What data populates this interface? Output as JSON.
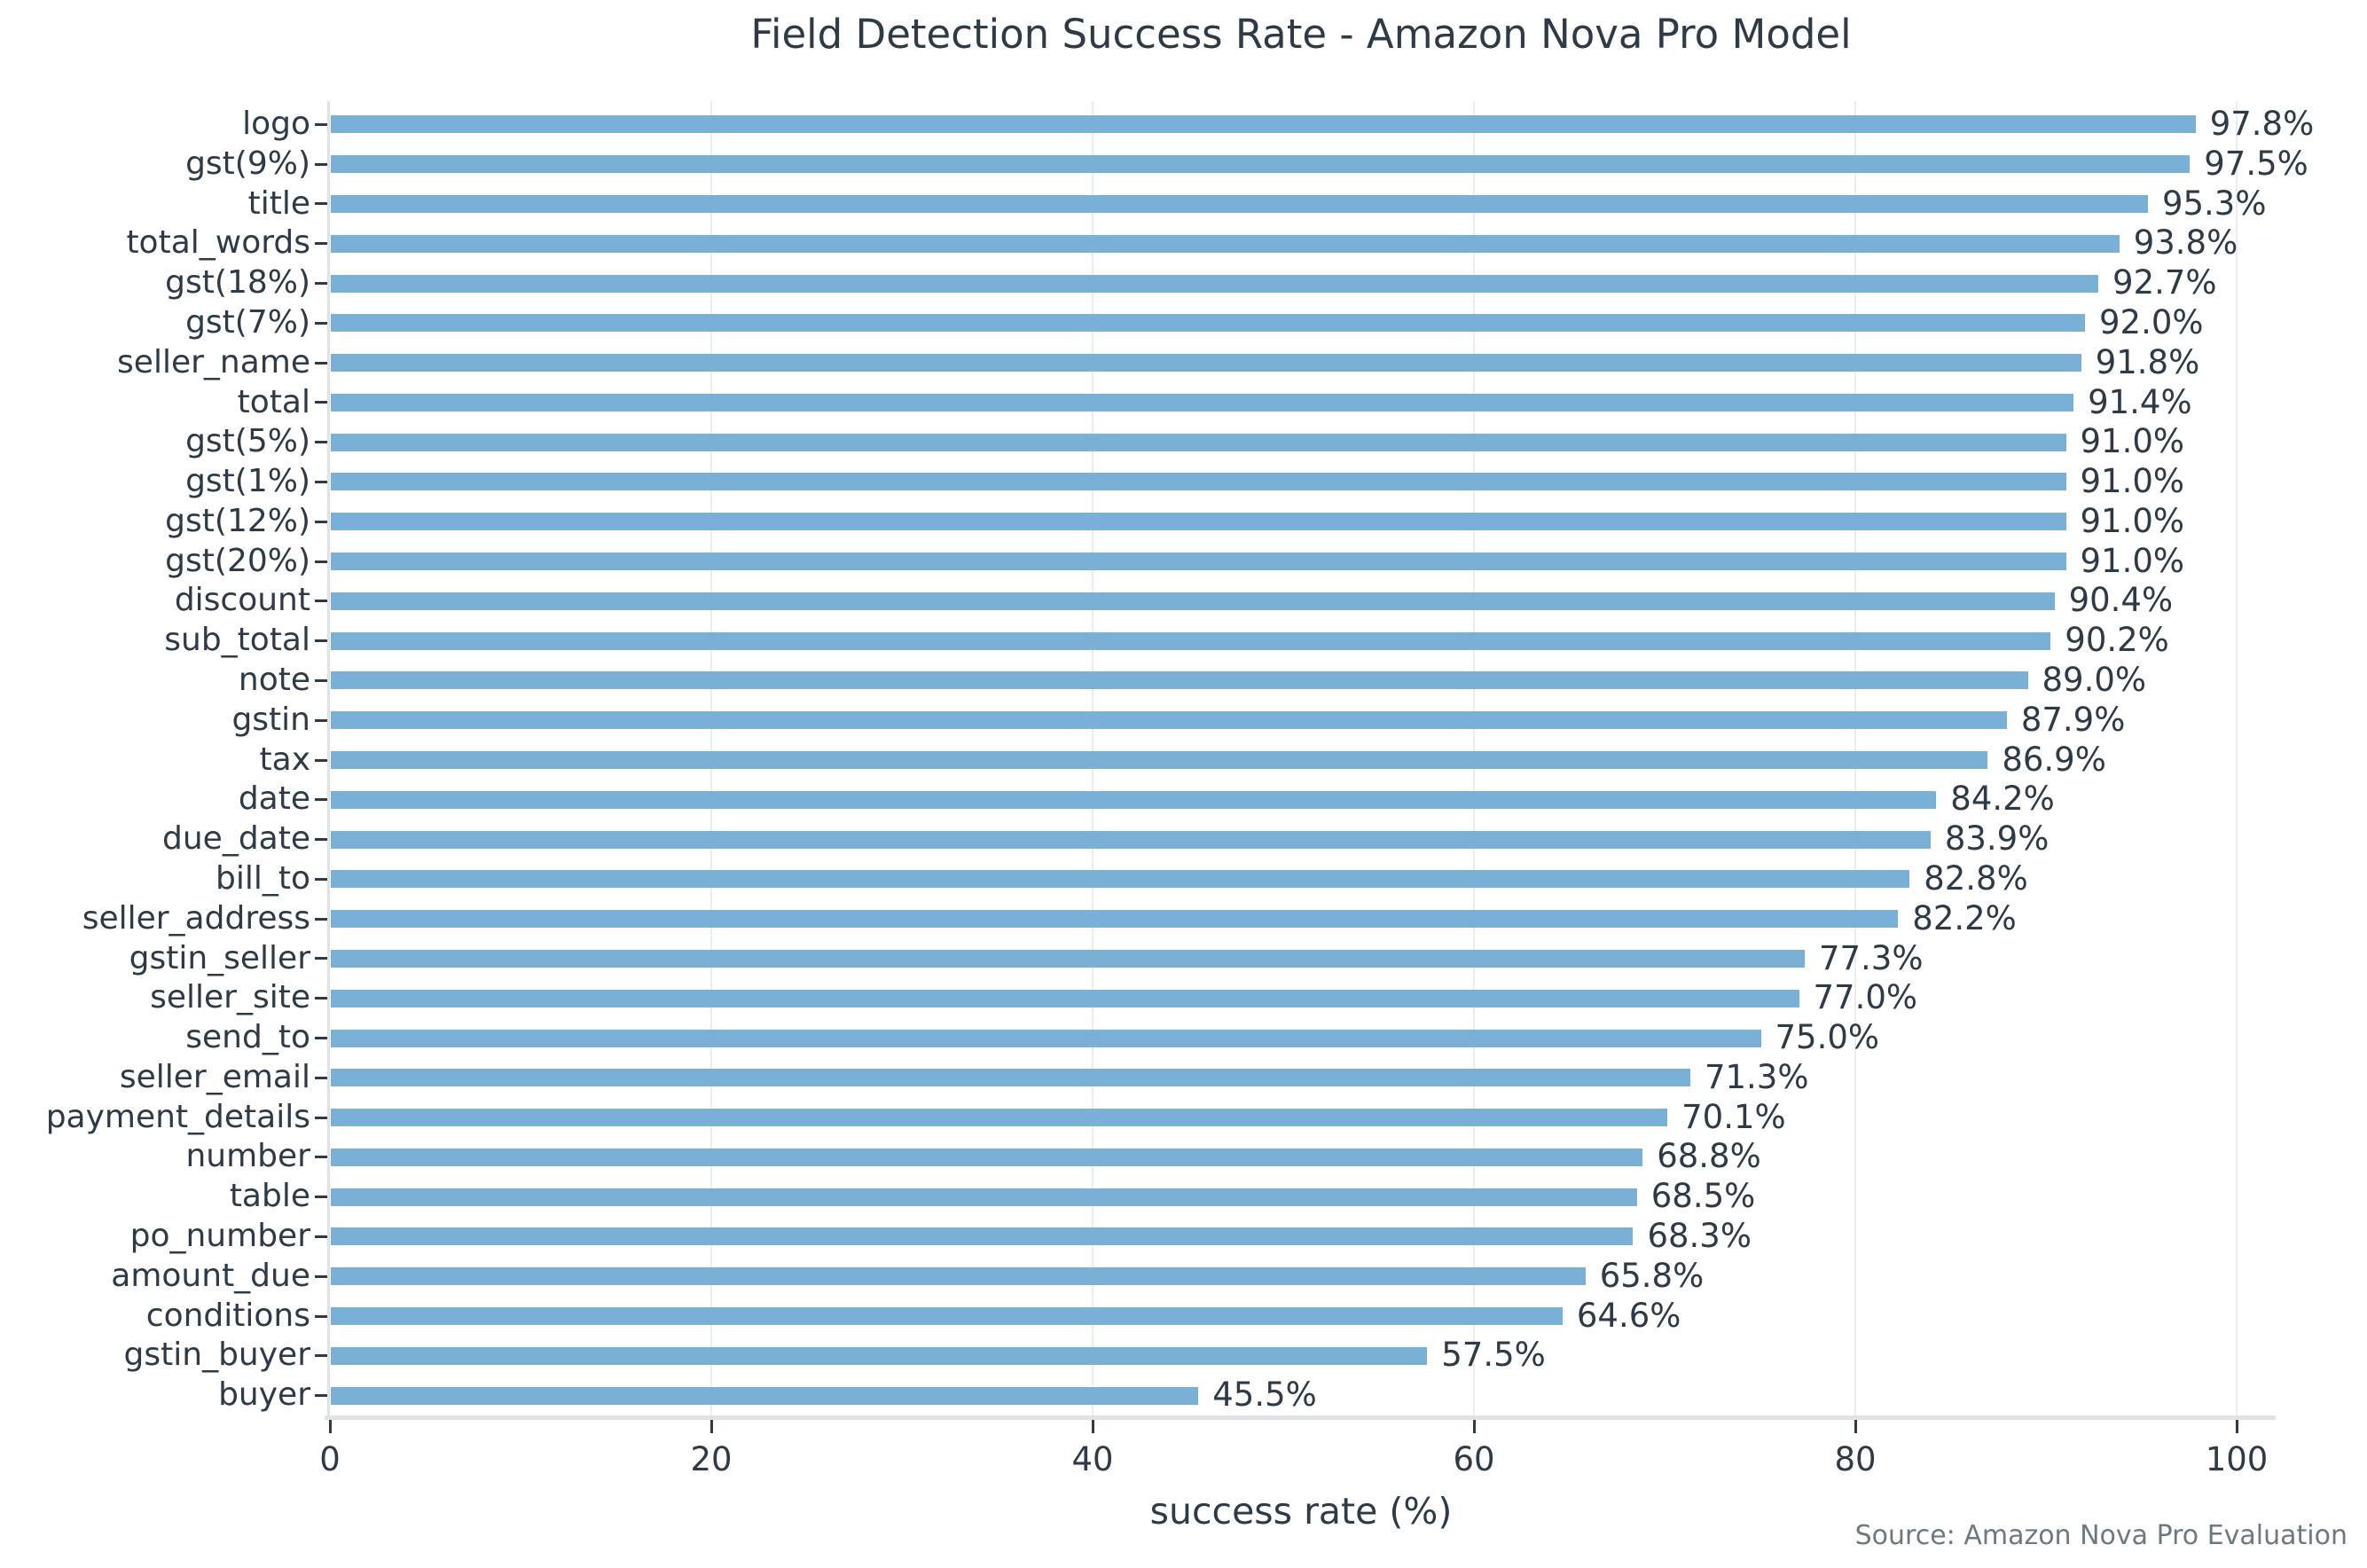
{
  "chart_data": {
    "type": "bar",
    "orientation": "horizontal",
    "title": "Field Detection Success Rate - Amazon Nova Pro Model",
    "xlabel": "success rate (%)",
    "ylabel": "",
    "source": "Source: Amazon Nova Pro Evaluation",
    "xlim": [
      0,
      100
    ],
    "x_ticks": [
      0,
      20,
      40,
      60,
      80,
      100
    ],
    "grid": "vertical",
    "legend": "none",
    "categories": [
      "logo",
      "gst(9%)",
      "title",
      "total_words",
      "gst(18%)",
      "gst(7%)",
      "seller_name",
      "total",
      "gst(5%)",
      "gst(1%)",
      "gst(12%)",
      "gst(20%)",
      "discount",
      "sub_total",
      "note",
      "gstin",
      "tax",
      "date",
      "due_date",
      "bill_to",
      "seller_address",
      "gstin_seller",
      "seller_site",
      "send_to",
      "seller_email",
      "payment_details",
      "number",
      "table",
      "po_number",
      "amount_due",
      "conditions",
      "gstin_buyer",
      "buyer"
    ],
    "values": [
      97.8,
      97.5,
      95.3,
      93.8,
      92.7,
      92.0,
      91.8,
      91.4,
      91.0,
      91.0,
      91.0,
      91.0,
      90.4,
      90.2,
      89.0,
      87.9,
      86.9,
      84.2,
      83.9,
      82.8,
      82.2,
      77.3,
      77.0,
      75.0,
      71.3,
      70.1,
      68.8,
      68.5,
      68.3,
      65.8,
      64.6,
      57.5,
      45.5
    ],
    "value_labels": [
      "97.8%",
      "97.5%",
      "95.3%",
      "93.8%",
      "92.7%",
      "92.0%",
      "91.8%",
      "91.4%",
      "91.0%",
      "91.0%",
      "91.0%",
      "91.0%",
      "90.4%",
      "90.2%",
      "89.0%",
      "87.9%",
      "86.9%",
      "84.2%",
      "83.9%",
      "82.8%",
      "82.2%",
      "77.3%",
      "77.0%",
      "75.0%",
      "71.3%",
      "70.1%",
      "68.8%",
      "68.5%",
      "68.3%",
      "65.8%",
      "64.6%",
      "57.5%",
      "45.5%"
    ],
    "colors": {
      "bar": "#7ab0d6",
      "text": "#2e3a45",
      "grid": "#eaecee",
      "spine": "#dfe3e5",
      "source": "#6e7880"
    }
  }
}
